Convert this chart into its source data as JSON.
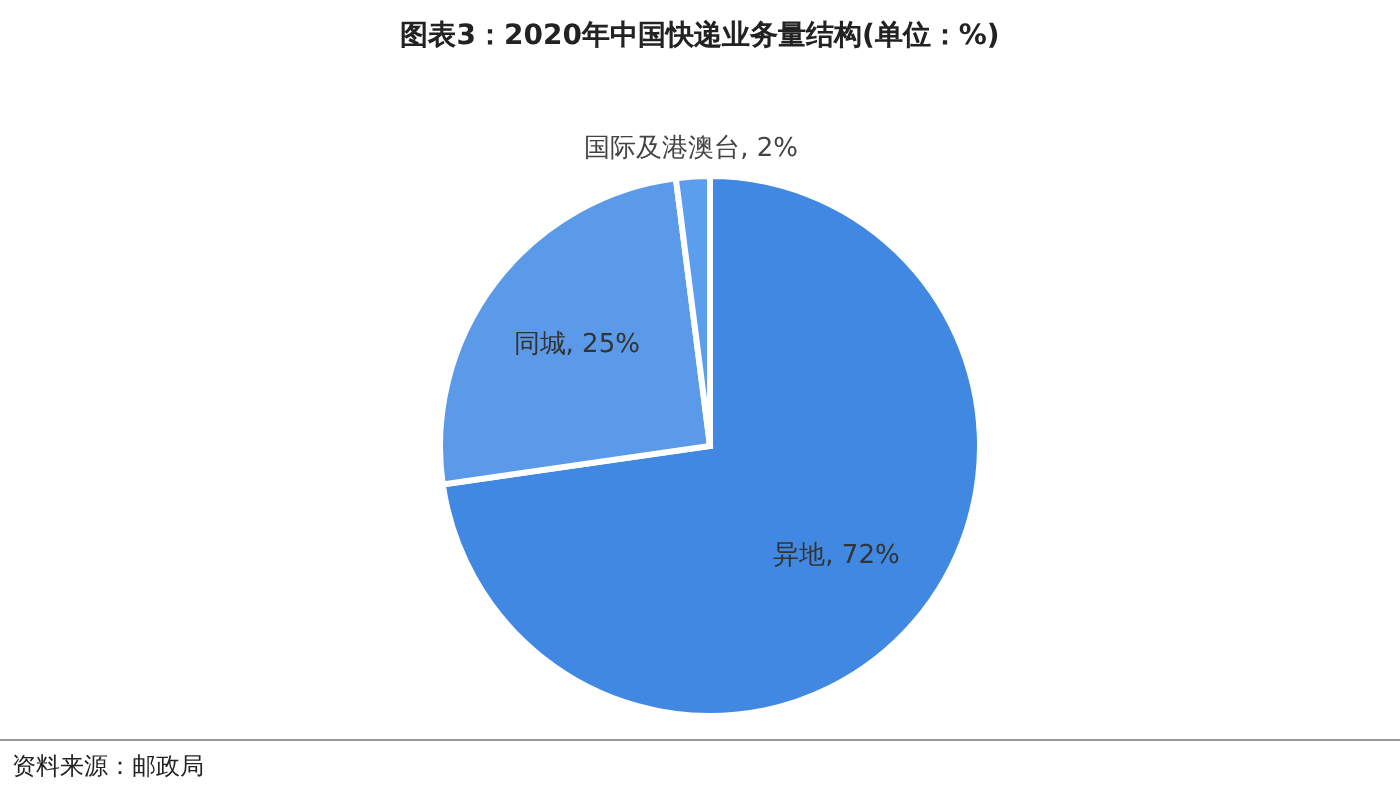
{
  "chart_data": {
    "type": "pie",
    "title": "图表3：2020年中国快递业务量结构(单位：%)",
    "categories": [
      "异地",
      "同城",
      "国际及港澳台"
    ],
    "values": [
      72,
      25,
      2
    ],
    "value_labels": [
      "72%",
      "25%",
      "2%"
    ],
    "colors": [
      "#4088e2",
      "#5a9ae9",
      "#5c9eee"
    ],
    "annotations": [
      "资料来源：邮政局"
    ]
  }
}
